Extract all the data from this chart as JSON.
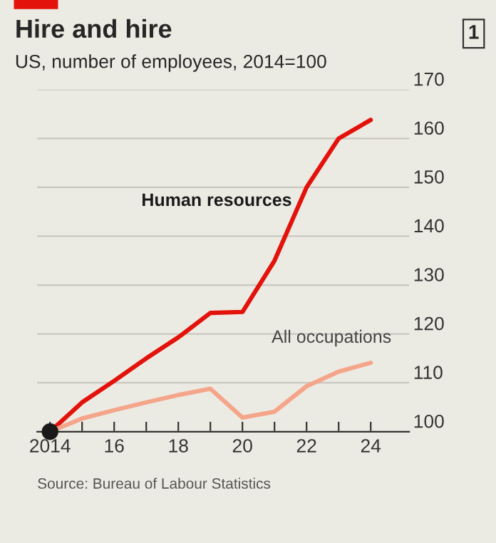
{
  "chart_data": {
    "type": "line",
    "title": "Hire and hire",
    "subtitle": "US, number of employees, 2014=100",
    "annotations": [
      "1",
      "Source: Bureau of Labour Statistics"
    ],
    "x": [
      2014,
      2015,
      2016,
      2017,
      2018,
      2019,
      2020,
      2021,
      2022,
      2023,
      2024
    ],
    "series": [
      {
        "name": "Human resources",
        "color": "#e3120b",
        "values": [
          100,
          106,
          110.4,
          115,
          119.3,
          124.3,
          124.5,
          135,
          150,
          160,
          163.8
        ]
      },
      {
        "name": "All occupations",
        "color": "#f4a58a",
        "values": [
          100,
          102.7,
          104.4,
          106,
          107.5,
          108.8,
          102.9,
          104.1,
          109.3,
          112.3,
          114.1
        ]
      },
      {
        "type": "scatter",
        "color": "#1a1a1a",
        "x": [
          2014
        ],
        "values": [
          100
        ]
      }
    ],
    "xlim": [
      2013.6,
      2025.2
    ],
    "ylim": [
      100,
      170
    ],
    "xticks": [
      {
        "value": 2014,
        "label": "2014"
      },
      {
        "value": 2015,
        "label": null
      },
      {
        "value": 2016,
        "label": "16"
      },
      {
        "value": 2017,
        "label": null
      },
      {
        "value": 2018,
        "label": "18"
      },
      {
        "value": 2019,
        "label": null
      },
      {
        "value": 2020,
        "label": "20"
      },
      {
        "value": 2021,
        "label": null
      },
      {
        "value": 2022,
        "label": "22"
      },
      {
        "value": 2023,
        "label": null
      },
      {
        "value": 2024,
        "label": "24"
      }
    ],
    "yticks": [
      100,
      110,
      120,
      130,
      140,
      150,
      160,
      170
    ],
    "grid": "y",
    "legend": false
  }
}
